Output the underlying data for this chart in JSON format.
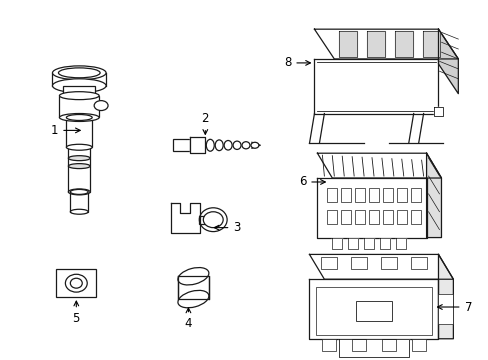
{
  "background_color": "#ffffff",
  "line_color": "#1a1a1a",
  "line_width": 0.9,
  "fig_width": 4.89,
  "fig_height": 3.6,
  "dpi": 100
}
